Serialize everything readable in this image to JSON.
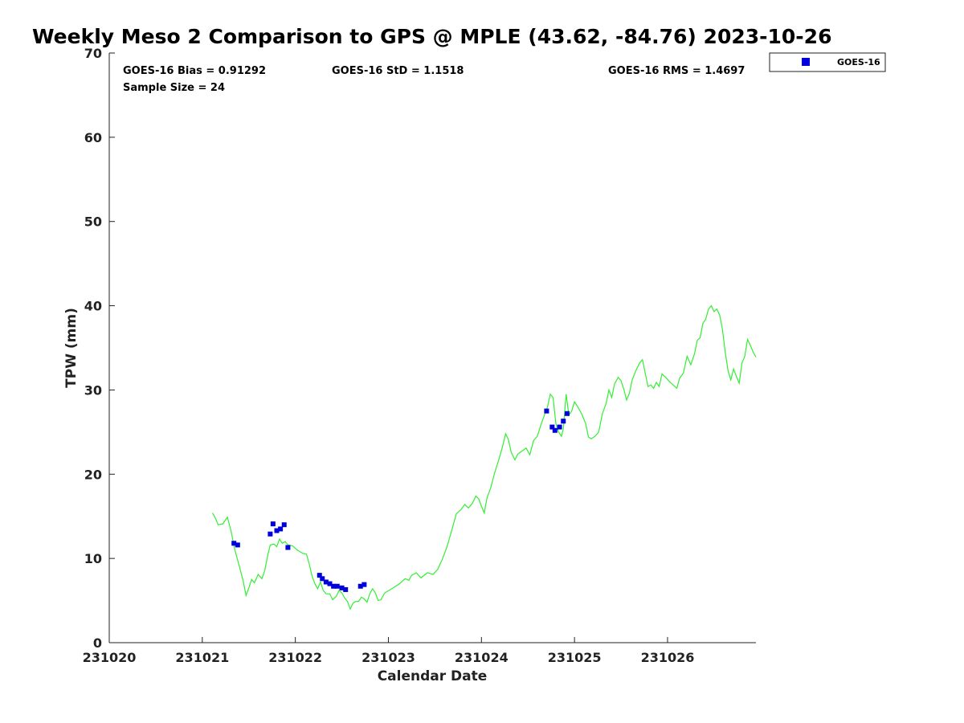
{
  "chart_data": {
    "type": "scatter",
    "title": "Weekly Meso 2 Comparison to GPS @ MPLE (43.62, -84.76) 2023-10-26",
    "xlabel": "Calendar Date",
    "ylabel": "TPW (mm)",
    "xlim": [
      0,
      6.95
    ],
    "ylim": [
      0,
      70
    ],
    "x_ticks": [
      {
        "value": 0,
        "label": "231020"
      },
      {
        "value": 1,
        "label": "231021"
      },
      {
        "value": 2,
        "label": "231022"
      },
      {
        "value": 3,
        "label": "231023"
      },
      {
        "value": 4,
        "label": "231024"
      },
      {
        "value": 5,
        "label": "231025"
      },
      {
        "value": 6,
        "label": "231026"
      }
    ],
    "y_ticks": [
      0,
      10,
      20,
      30,
      40,
      50,
      60,
      70
    ],
    "grid": false,
    "legend_position": "outside-top-right",
    "stats": {
      "bias": "GOES-16 Bias = 0.91292",
      "std": "GOES-16 StD = 1.1518",
      "rms": "GOES-16 RMS = 1.4697",
      "sample": "Sample Size = 24"
    },
    "series": [
      {
        "name": "GPS",
        "kind": "line",
        "color": "#33ee33",
        "points": [
          [
            1.11,
            15.4
          ],
          [
            1.14,
            14.8
          ],
          [
            1.17,
            14.0
          ],
          [
            1.22,
            14.1
          ],
          [
            1.27,
            14.9
          ],
          [
            1.31,
            13.2
          ],
          [
            1.35,
            11.0
          ],
          [
            1.4,
            9.0
          ],
          [
            1.44,
            7.3
          ],
          [
            1.47,
            5.6
          ],
          [
            1.5,
            6.5
          ],
          [
            1.53,
            7.5
          ],
          [
            1.56,
            7.1
          ],
          [
            1.6,
            8.1
          ],
          [
            1.64,
            7.6
          ],
          [
            1.67,
            8.5
          ],
          [
            1.7,
            10.2
          ],
          [
            1.73,
            11.6
          ],
          [
            1.77,
            11.7
          ],
          [
            1.8,
            11.4
          ],
          [
            1.83,
            12.3
          ],
          [
            1.86,
            11.8
          ],
          [
            1.89,
            12.0
          ],
          [
            1.92,
            11.6
          ],
          [
            1.97,
            11.5
          ],
          [
            2.02,
            11.0
          ],
          [
            2.08,
            10.6
          ],
          [
            2.12,
            10.5
          ],
          [
            2.15,
            9.3
          ],
          [
            2.18,
            7.9
          ],
          [
            2.21,
            7.0
          ],
          [
            2.24,
            6.4
          ],
          [
            2.27,
            7.2
          ],
          [
            2.3,
            6.2
          ],
          [
            2.33,
            5.8
          ],
          [
            2.37,
            5.8
          ],
          [
            2.4,
            5.1
          ],
          [
            2.44,
            5.5
          ],
          [
            2.47,
            6.2
          ],
          [
            2.5,
            5.9
          ],
          [
            2.53,
            5.3
          ],
          [
            2.56,
            4.9
          ],
          [
            2.59,
            4.0
          ],
          [
            2.62,
            4.7
          ],
          [
            2.65,
            4.9
          ],
          [
            2.68,
            4.9
          ],
          [
            2.71,
            5.4
          ],
          [
            2.74,
            5.2
          ],
          [
            2.77,
            4.8
          ],
          [
            2.8,
            5.8
          ],
          [
            2.83,
            6.4
          ],
          [
            2.86,
            5.9
          ],
          [
            2.89,
            5.0
          ],
          [
            2.92,
            5.1
          ],
          [
            2.96,
            5.9
          ],
          [
            3.05,
            6.5
          ],
          [
            3.12,
            7.0
          ],
          [
            3.18,
            7.6
          ],
          [
            3.22,
            7.4
          ],
          [
            3.25,
            8.0
          ],
          [
            3.3,
            8.3
          ],
          [
            3.35,
            7.7
          ],
          [
            3.42,
            8.3
          ],
          [
            3.48,
            8.1
          ],
          [
            3.53,
            8.7
          ],
          [
            3.58,
            9.9
          ],
          [
            3.63,
            11.4
          ],
          [
            3.68,
            13.3
          ],
          [
            3.73,
            15.3
          ],
          [
            3.78,
            15.8
          ],
          [
            3.82,
            16.4
          ],
          [
            3.86,
            16.0
          ],
          [
            3.9,
            16.5
          ],
          [
            3.94,
            17.4
          ],
          [
            3.97,
            17.1
          ],
          [
            4.0,
            16.2
          ],
          [
            4.03,
            15.4
          ],
          [
            4.06,
            17.2
          ],
          [
            4.1,
            18.4
          ],
          [
            4.14,
            20.1
          ],
          [
            4.18,
            21.5
          ],
          [
            4.22,
            23.0
          ],
          [
            4.26,
            24.8
          ],
          [
            4.29,
            24.1
          ],
          [
            4.32,
            22.6
          ],
          [
            4.36,
            21.7
          ],
          [
            4.39,
            22.4
          ],
          [
            4.43,
            22.7
          ],
          [
            4.48,
            23.1
          ],
          [
            4.52,
            22.3
          ],
          [
            4.56,
            24.0
          ],
          [
            4.6,
            24.5
          ],
          [
            4.64,
            25.9
          ],
          [
            4.68,
            27.1
          ],
          [
            4.71,
            28.0
          ],
          [
            4.74,
            29.5
          ],
          [
            4.77,
            29.1
          ],
          [
            4.8,
            26.0
          ],
          [
            4.83,
            25.0
          ],
          [
            4.86,
            24.5
          ],
          [
            4.88,
            25.4
          ],
          [
            4.91,
            29.5
          ],
          [
            4.94,
            27.0
          ],
          [
            4.97,
            27.5
          ],
          [
            5.0,
            28.6
          ],
          [
            5.04,
            27.9
          ],
          [
            5.08,
            27.1
          ],
          [
            5.12,
            26.0
          ],
          [
            5.15,
            24.4
          ],
          [
            5.18,
            24.2
          ],
          [
            5.22,
            24.5
          ],
          [
            5.26,
            25.0
          ],
          [
            5.3,
            27.2
          ],
          [
            5.34,
            28.4
          ],
          [
            5.37,
            30.0
          ],
          [
            5.4,
            29.1
          ],
          [
            5.43,
            30.7
          ],
          [
            5.47,
            31.5
          ],
          [
            5.5,
            31.1
          ],
          [
            5.53,
            30.1
          ],
          [
            5.56,
            28.8
          ],
          [
            5.59,
            29.6
          ],
          [
            5.62,
            31.2
          ],
          [
            5.66,
            32.3
          ],
          [
            5.7,
            33.2
          ],
          [
            5.73,
            33.6
          ],
          [
            5.76,
            32.0
          ],
          [
            5.79,
            30.4
          ],
          [
            5.82,
            30.6
          ],
          [
            5.85,
            30.2
          ],
          [
            5.88,
            30.9
          ],
          [
            5.91,
            30.4
          ],
          [
            5.94,
            31.9
          ],
          [
            5.98,
            31.5
          ],
          [
            6.02,
            31.0
          ],
          [
            6.06,
            30.6
          ],
          [
            6.1,
            30.2
          ],
          [
            6.13,
            31.4
          ],
          [
            6.17,
            32.0
          ],
          [
            6.21,
            34.0
          ],
          [
            6.25,
            33.0
          ],
          [
            6.29,
            34.3
          ],
          [
            6.32,
            35.9
          ],
          [
            6.35,
            36.2
          ],
          [
            6.38,
            37.9
          ],
          [
            6.41,
            38.4
          ],
          [
            6.44,
            39.6
          ],
          [
            6.47,
            40.0
          ],
          [
            6.5,
            39.3
          ],
          [
            6.53,
            39.6
          ],
          [
            6.56,
            38.9
          ],
          [
            6.59,
            37.2
          ],
          [
            6.62,
            34.5
          ],
          [
            6.65,
            32.3
          ],
          [
            6.68,
            31.2
          ],
          [
            6.71,
            32.5
          ],
          [
            6.74,
            31.6
          ],
          [
            6.77,
            30.8
          ],
          [
            6.8,
            33.2
          ],
          [
            6.83,
            34.0
          ],
          [
            6.86,
            36.0
          ],
          [
            6.89,
            35.3
          ],
          [
            6.92,
            34.5
          ],
          [
            6.95,
            33.9
          ]
        ]
      },
      {
        "name": "GOES-16",
        "kind": "scatter",
        "color": "#0000dd",
        "points": [
          [
            1.34,
            11.8
          ],
          [
            1.38,
            11.6
          ],
          [
            1.73,
            12.9
          ],
          [
            1.76,
            14.1
          ],
          [
            1.8,
            13.3
          ],
          [
            1.84,
            13.5
          ],
          [
            1.88,
            14.0
          ],
          [
            1.92,
            11.3
          ],
          [
            2.26,
            8.0
          ],
          [
            2.29,
            7.6
          ],
          [
            2.33,
            7.2
          ],
          [
            2.37,
            7.0
          ],
          [
            2.41,
            6.7
          ],
          [
            2.45,
            6.7
          ],
          [
            2.5,
            6.5
          ],
          [
            2.54,
            6.3
          ],
          [
            2.7,
            6.7
          ],
          [
            2.74,
            6.9
          ],
          [
            4.7,
            27.5
          ],
          [
            4.76,
            25.6
          ],
          [
            4.79,
            25.2
          ],
          [
            4.84,
            25.6
          ],
          [
            4.88,
            26.3
          ],
          [
            4.92,
            27.2
          ]
        ]
      }
    ],
    "legend": [
      {
        "label": "GOES-16",
        "color": "#0000dd"
      }
    ]
  }
}
